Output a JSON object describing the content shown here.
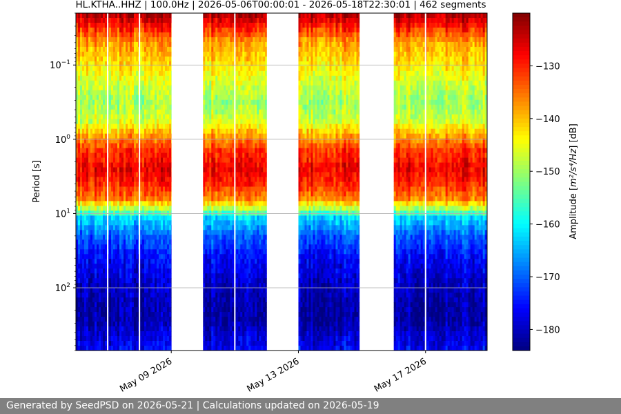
{
  "chart_data": {
    "type": "heatmap",
    "title": "HL.KTHA..HHZ | 100.0Hz | 2026-05-06T00:00:01 - 2026-05-18T22:30:01 | 462 segments",
    "ylabel": "Period [s]",
    "colorbar_label_prefix": "Amplitude [",
    "colorbar_label_units": "m²/s⁴/Hz",
    "colorbar_label_suffix": "] [dB]",
    "y_scale": "log",
    "y_inverted": true,
    "ylim": [
      0.02,
      700
    ],
    "y_ticks": [
      {
        "value": 0.1,
        "base": "10",
        "exp": "−1"
      },
      {
        "value": 1,
        "base": "10",
        "exp": "0"
      },
      {
        "value": 10,
        "base": "10",
        "exp": "1"
      },
      {
        "value": 100,
        "base": "10",
        "exp": "2"
      }
    ],
    "x_range": [
      "2026-05-06",
      "2026-05-18T22:30"
    ],
    "x_ticks": [
      {
        "date": "2026-05-09",
        "label": "May 09 2026"
      },
      {
        "date": "2026-05-13",
        "label": "May 13 2026"
      },
      {
        "date": "2026-05-17",
        "label": "May 17 2026"
      }
    ],
    "data_blocks": [
      {
        "start": "2026-05-06T00:00",
        "end": "2026-05-09T00:00"
      },
      {
        "start": "2026-05-10T00:00",
        "end": "2026-05-12T00:00"
      },
      {
        "start": "2026-05-13T00:00",
        "end": "2026-05-14T22:00"
      },
      {
        "start": "2026-05-16T00:00",
        "end": "2026-05-18T22:30"
      }
    ],
    "gaps_in_data": [
      "2026-05-07T00:00",
      "2026-05-08T00:00",
      "2026-05-11T00:00",
      "2026-05-17T00:00"
    ],
    "colorbar_range_db": [
      -184,
      -120
    ],
    "colorbar_ticks": [
      -130,
      -140,
      -150,
      -160,
      -170,
      -180
    ],
    "colormap": "jet",
    "grid": true
  },
  "footer": {
    "text": "Generated by SeedPSD on 2026-05-21 | Calculations updated on 2026-05-19",
    "background": "#808080"
  }
}
